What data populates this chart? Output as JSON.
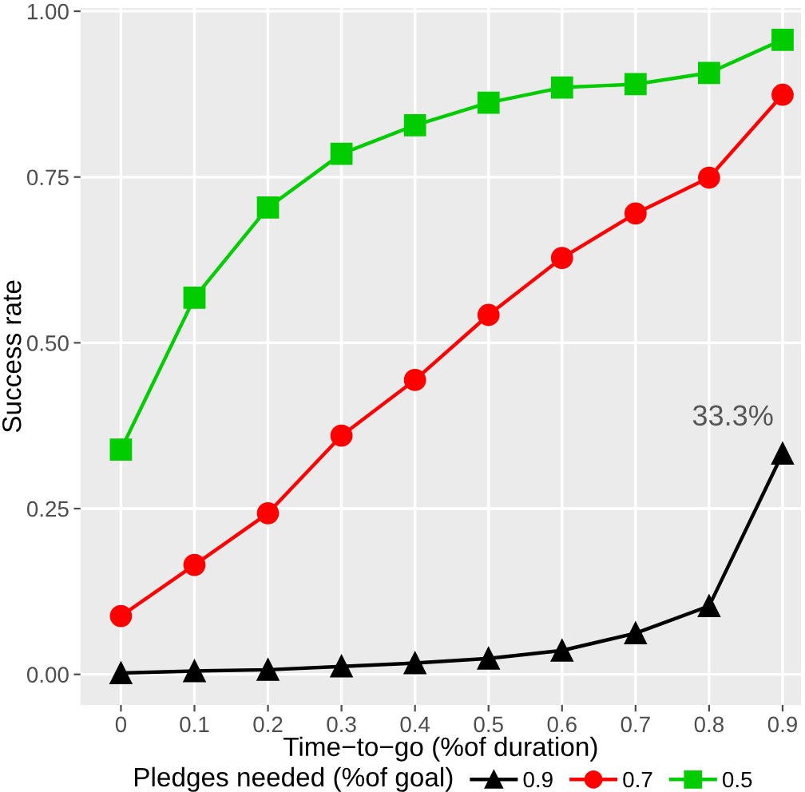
{
  "chart_data": {
    "type": "line",
    "xlabel": "Time−to−go (%of duration)",
    "ylabel": "Success rate",
    "legend_title": "Pledges needed (%of goal)",
    "categories": [
      "0",
      "0.1",
      "0.2",
      "0.3",
      "0.4",
      "0.5",
      "0.6",
      "0.7",
      "0.8",
      "0.9"
    ],
    "series": [
      {
        "name": "0.9",
        "color": "#000000",
        "marker": "triangle",
        "values": [
          0.002,
          0.005,
          0.007,
          0.012,
          0.017,
          0.024,
          0.036,
          0.062,
          0.103,
          0.333
        ]
      },
      {
        "name": "0.7",
        "color": "#ff0000",
        "marker": "circle",
        "values": [
          0.088,
          0.165,
          0.243,
          0.36,
          0.444,
          0.542,
          0.628,
          0.695,
          0.749,
          0.874
        ]
      },
      {
        "name": "0.5",
        "color": "#00cc00",
        "marker": "square",
        "values": [
          0.339,
          0.568,
          0.704,
          0.785,
          0.828,
          0.862,
          0.885,
          0.89,
          0.907,
          0.957
        ]
      }
    ],
    "ylim": [
      -0.046,
      1.005
    ],
    "yticks": [
      {
        "value": 0,
        "label": "0.00"
      },
      {
        "value": 0.25,
        "label": "0.25"
      },
      {
        "value": 0.5,
        "label": "0.50"
      },
      {
        "value": 0.75,
        "label": "0.75"
      },
      {
        "value": 1,
        "label": "1.00"
      }
    ],
    "annotations": [
      {
        "text": "33.3%",
        "x": "0.9",
        "y": 0.333
      }
    ],
    "grid": true,
    "legend": "bottom",
    "line_style": "solid"
  }
}
